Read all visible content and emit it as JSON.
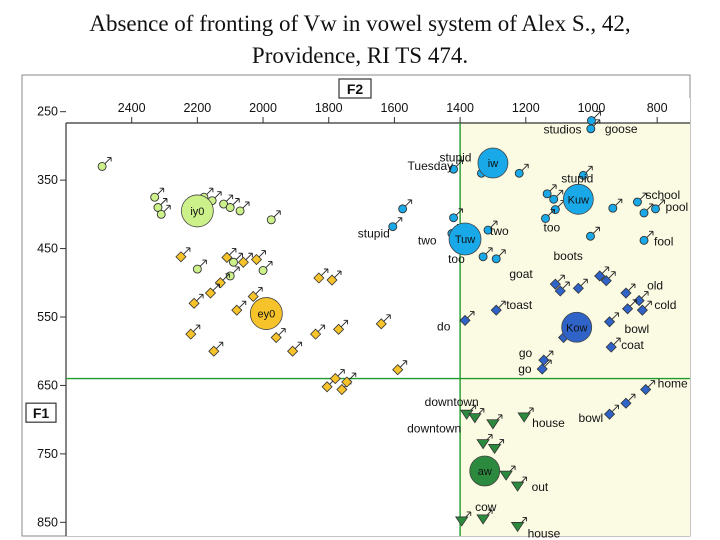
{
  "title_line1": "Absence of fronting of Vw in vowel system of Alex S., 42,",
  "title_line2": "Providence, RI TS 474.",
  "colors": {
    "plot_bg": "#fbfbe3",
    "gridline": "#1f9a2b",
    "iy": "#ccf08a",
    "ey": "#f6c32a",
    "uw": "#19a8e8",
    "ow": "#2f63c8",
    "aw": "#2c8a3e",
    "border": "#888888"
  },
  "chart_data": {
    "type": "scatter",
    "x_axis_name": "F2",
    "y_axis_name": "F1",
    "xlim": [
      2600,
      700
    ],
    "ylim": [
      230,
      870
    ],
    "x_reversed": true,
    "y_reversed": true,
    "x_ticks": [
      2400,
      2200,
      2000,
      1800,
      1600,
      1400,
      1200,
      1000,
      800
    ],
    "y_ticks": [
      250,
      350,
      450,
      550,
      650,
      750,
      850
    ],
    "reference_lines": {
      "x": 1400,
      "y": 640
    },
    "grid": false,
    "means": [
      {
        "label": "iy0",
        "f2": 2200,
        "f1": 395,
        "class": "iy",
        "r": 16
      },
      {
        "label": "ey0",
        "f2": 1990,
        "f1": 545,
        "class": "ey",
        "r": 16
      },
      {
        "label": "iw",
        "f2": 1300,
        "f1": 325,
        "class": "uw",
        "r": 15
      },
      {
        "label": "Kuw",
        "f2": 1040,
        "f1": 378,
        "class": "uw",
        "r": 15
      },
      {
        "label": "Tuw",
        "f2": 1385,
        "f1": 436,
        "class": "uw",
        "r": 16
      },
      {
        "label": "Kow",
        "f2": 1045,
        "f1": 565,
        "class": "ow",
        "r": 15
      },
      {
        "label": "aw",
        "f2": 1325,
        "f1": 775,
        "class": "aw",
        "r": 15
      }
    ],
    "series": [
      {
        "class": "iy",
        "shape": "circle",
        "points": [
          {
            "f2": 2490,
            "f1": 330
          },
          {
            "f2": 2330,
            "f1": 375
          },
          {
            "f2": 2320,
            "f1": 390
          },
          {
            "f2": 2310,
            "f1": 400
          },
          {
            "f2": 2180,
            "f1": 375
          },
          {
            "f2": 2155,
            "f1": 380
          },
          {
            "f2": 2120,
            "f1": 385
          },
          {
            "f2": 2100,
            "f1": 390
          },
          {
            "f2": 2070,
            "f1": 395
          },
          {
            "f2": 1975,
            "f1": 408
          },
          {
            "f2": 2090,
            "f1": 470
          },
          {
            "f2": 2200,
            "f1": 480
          },
          {
            "f2": 2100,
            "f1": 490
          },
          {
            "f2": 2000,
            "f1": 482
          }
        ]
      },
      {
        "class": "ey",
        "shape": "diamond",
        "points": [
          {
            "f2": 2250,
            "f1": 462
          },
          {
            "f2": 2110,
            "f1": 463
          },
          {
            "f2": 2060,
            "f1": 470
          },
          {
            "f2": 2020,
            "f1": 466
          },
          {
            "f2": 2130,
            "f1": 500
          },
          {
            "f2": 2160,
            "f1": 515
          },
          {
            "f2": 2030,
            "f1": 520
          },
          {
            "f2": 1830,
            "f1": 493
          },
          {
            "f2": 1790,
            "f1": 496
          },
          {
            "f2": 2210,
            "f1": 530
          },
          {
            "f2": 2080,
            "f1": 540
          },
          {
            "f2": 2220,
            "f1": 575
          },
          {
            "f2": 2150,
            "f1": 600
          },
          {
            "f2": 1960,
            "f1": 580
          },
          {
            "f2": 1910,
            "f1": 600
          },
          {
            "f2": 1840,
            "f1": 575
          },
          {
            "f2": 1770,
            "f1": 568
          },
          {
            "f2": 1640,
            "f1": 560
          },
          {
            "f2": 1590,
            "f1": 627
          },
          {
            "f2": 1805,
            "f1": 652
          },
          {
            "f2": 1780,
            "f1": 640
          },
          {
            "f2": 1760,
            "f1": 656
          },
          {
            "f2": 1745,
            "f1": 645
          }
        ]
      },
      {
        "class": "uw",
        "shape": "circle",
        "points": [
          {
            "f2": 1420,
            "f1": 334,
            "label": "Tuesday",
            "dx": -46,
            "dy": 1
          },
          {
            "f2": 1335,
            "f1": 340,
            "label": "stupid",
            "dx": -42,
            "dy": -12
          },
          {
            "f2": 1220,
            "f1": 340
          },
          {
            "f2": 1025,
            "f1": 343,
            "label": "stupid",
            "dx": -22,
            "dy": 7
          },
          {
            "f2": 1575,
            "f1": 392
          },
          {
            "f2": 1420,
            "f1": 405
          },
          {
            "f2": 1135,
            "f1": 370
          },
          {
            "f2": 1115,
            "f1": 378
          },
          {
            "f2": 1110,
            "f1": 393
          },
          {
            "f2": 935,
            "f1": 391
          },
          {
            "f2": 860,
            "f1": 382,
            "label": "school",
            "dx": 8,
            "dy": -3
          },
          {
            "f2": 840,
            "f1": 398
          },
          {
            "f2": 805,
            "f1": 392,
            "label": "pool",
            "dx": 10,
            "dy": 2
          },
          {
            "f2": 1605,
            "f1": 418,
            "label": "stupid",
            "dx": -35,
            "dy": 11
          },
          {
            "f2": 1425,
            "f1": 428,
            "label": "two",
            "dx": -34,
            "dy": 11
          },
          {
            "f2": 1315,
            "f1": 423,
            "label": "two",
            "dx": 2,
            "dy": 5
          },
          {
            "f2": 1140,
            "f1": 406,
            "label": "too",
            "dx": -2,
            "dy": 13
          },
          {
            "f2": 1003,
            "f1": 432,
            "label": "boots",
            "dx": -37,
            "dy": 24
          },
          {
            "f2": 840,
            "f1": 438,
            "label": "fool",
            "dx": 10,
            "dy": 5
          },
          {
            "f2": 1330,
            "f1": 462,
            "label": "too",
            "dx": -35,
            "dy": 6
          },
          {
            "f2": 1290,
            "f1": 465
          },
          {
            "f2": 1000,
            "f1": 263,
            "label": "studios",
            "dx": -48,
            "dy": 13
          },
          {
            "f2": 1002,
            "f1": 275,
            "label": "goose",
            "dx": 14,
            "dy": 4
          }
        ]
      },
      {
        "class": "ow",
        "shape": "diamond",
        "points": [
          {
            "f2": 1110,
            "f1": 502,
            "label": "goat",
            "dx": -46,
            "dy": -6
          },
          {
            "f2": 1095,
            "f1": 512
          },
          {
            "f2": 1040,
            "f1": 508
          },
          {
            "f2": 975,
            "f1": 490
          },
          {
            "f2": 955,
            "f1": 497
          },
          {
            "f2": 895,
            "f1": 515
          },
          {
            "f2": 855,
            "f1": 526,
            "label": "old",
            "dx": 8,
            "dy": -11
          },
          {
            "f2": 845,
            "f1": 540,
            "label": "cold",
            "dx": 12,
            "dy": -1
          },
          {
            "f2": 890,
            "f1": 538
          },
          {
            "f2": 1290,
            "f1": 540,
            "label": "toast",
            "dx": 10,
            "dy": -1
          },
          {
            "f2": 1385,
            "f1": 555,
            "label": "do",
            "dx": -28,
            "dy": 10
          },
          {
            "f2": 945,
            "f1": 557,
            "label": "bowl",
            "dx": 15,
            "dy": 11
          },
          {
            "f2": 1085,
            "f1": 580
          },
          {
            "f2": 940,
            "f1": 594,
            "label": "coat",
            "dx": 10,
            "dy": 2
          },
          {
            "f2": 1145,
            "f1": 613,
            "label": "go",
            "dx": -25,
            "dy": -3
          },
          {
            "f2": 1150,
            "f1": 626,
            "label": "go",
            "dx": -24,
            "dy": 4
          },
          {
            "f2": 835,
            "f1": 656,
            "label": "home",
            "dx": 12,
            "dy": -2
          },
          {
            "f2": 895,
            "f1": 676
          },
          {
            "f2": 945,
            "f1": 692,
            "label": "bowl",
            "dx": -31,
            "dy": 8
          }
        ]
      },
      {
        "class": "aw",
        "shape": "triangle",
        "points": [
          {
            "f2": 1380,
            "f1": 692,
            "label": "downtown",
            "dx": -42,
            "dy": -8
          },
          {
            "f2": 1355,
            "f1": 697
          },
          {
            "f2": 1300,
            "f1": 706
          },
          {
            "f2": 1205,
            "f1": 696,
            "label": "house",
            "dx": 8,
            "dy": 10
          },
          {
            "f2": 1330,
            "f1": 735,
            "label": "downtown",
            "dx": -76,
            "dy": -11
          },
          {
            "f2": 1295,
            "f1": 742
          },
          {
            "f2": 1260,
            "f1": 781
          },
          {
            "f2": 1225,
            "f1": 797,
            "label": "out",
            "dx": 14,
            "dy": 5
          },
          {
            "f2": 1395,
            "f1": 848
          },
          {
            "f2": 1330,
            "f1": 845,
            "label": "cow",
            "dx": -8,
            "dy": -8
          },
          {
            "f2": 1225,
            "f1": 856,
            "label": "house",
            "dx": 10,
            "dy": 11
          }
        ]
      }
    ]
  }
}
